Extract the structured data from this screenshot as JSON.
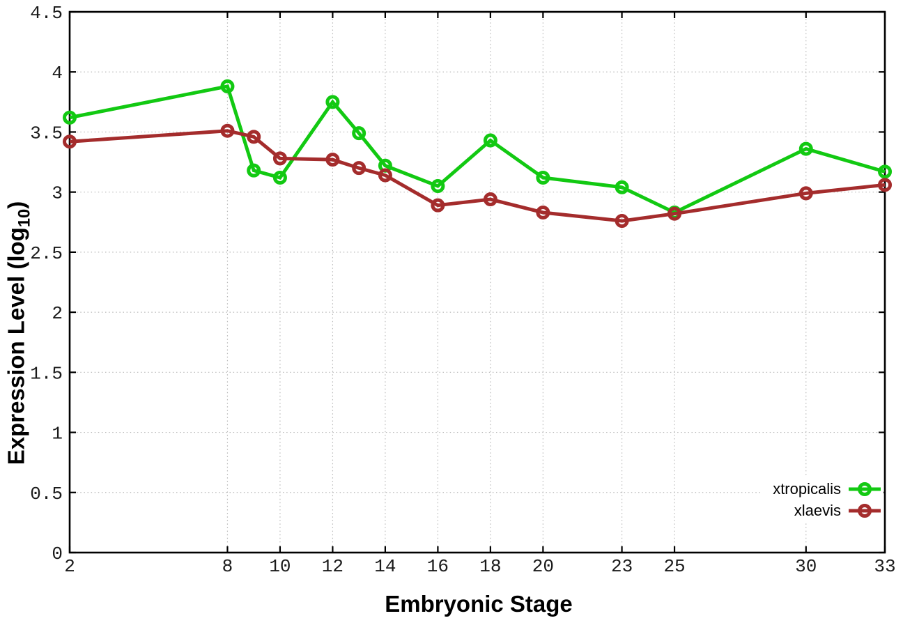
{
  "labels": {
    "xlabel": "Embryonic Stage",
    "ylabel_prefix": "Expression Level (log",
    "ylabel_sub": "10",
    "ylabel_suffix": ")"
  },
  "chart_data": {
    "type": "line",
    "title": "",
    "xlabel": "Embryonic Stage",
    "ylabel": "Expression Level (log10)",
    "x": [
      2,
      8,
      9,
      10,
      12,
      13,
      14,
      16,
      18,
      20,
      23,
      25,
      30,
      33
    ],
    "series": [
      {
        "name": "xtropicalis",
        "color": "#12c912",
        "marker": "open-circle",
        "values": [
          3.62,
          3.88,
          3.18,
          3.12,
          3.75,
          3.49,
          3.22,
          3.05,
          3.43,
          3.12,
          3.04,
          2.83,
          3.36,
          3.17
        ]
      },
      {
        "name": "xlaevis",
        "color": "#a42c2c",
        "marker": "open-circle",
        "values": [
          3.42,
          3.51,
          3.46,
          3.28,
          3.27,
          3.2,
          3.14,
          2.89,
          2.94,
          2.83,
          2.76,
          2.82,
          2.99,
          3.06
        ]
      }
    ],
    "xlim": [
      2,
      33
    ],
    "ylim": [
      0,
      4.5
    ],
    "xticks": [
      2,
      8,
      10,
      12,
      14,
      16,
      18,
      20,
      23,
      25,
      30,
      33
    ],
    "xtick_labels": [
      "2",
      "8",
      "10",
      "12",
      "14",
      "16",
      "18",
      "20",
      "23",
      "25",
      "30",
      "33"
    ],
    "yticks": [
      0,
      0.5,
      1,
      1.5,
      2,
      2.5,
      3,
      3.5,
      4,
      4.5
    ],
    "ytick_labels": [
      "0",
      "0.5",
      "1",
      "1.5",
      "2",
      "2.5",
      "3",
      "3.5",
      "4",
      "4.5"
    ],
    "grid": true,
    "legend_position": "bottom-right",
    "axis_color": "#000000",
    "grid_color": "#b8b8b8",
    "background": "#ffffff"
  }
}
